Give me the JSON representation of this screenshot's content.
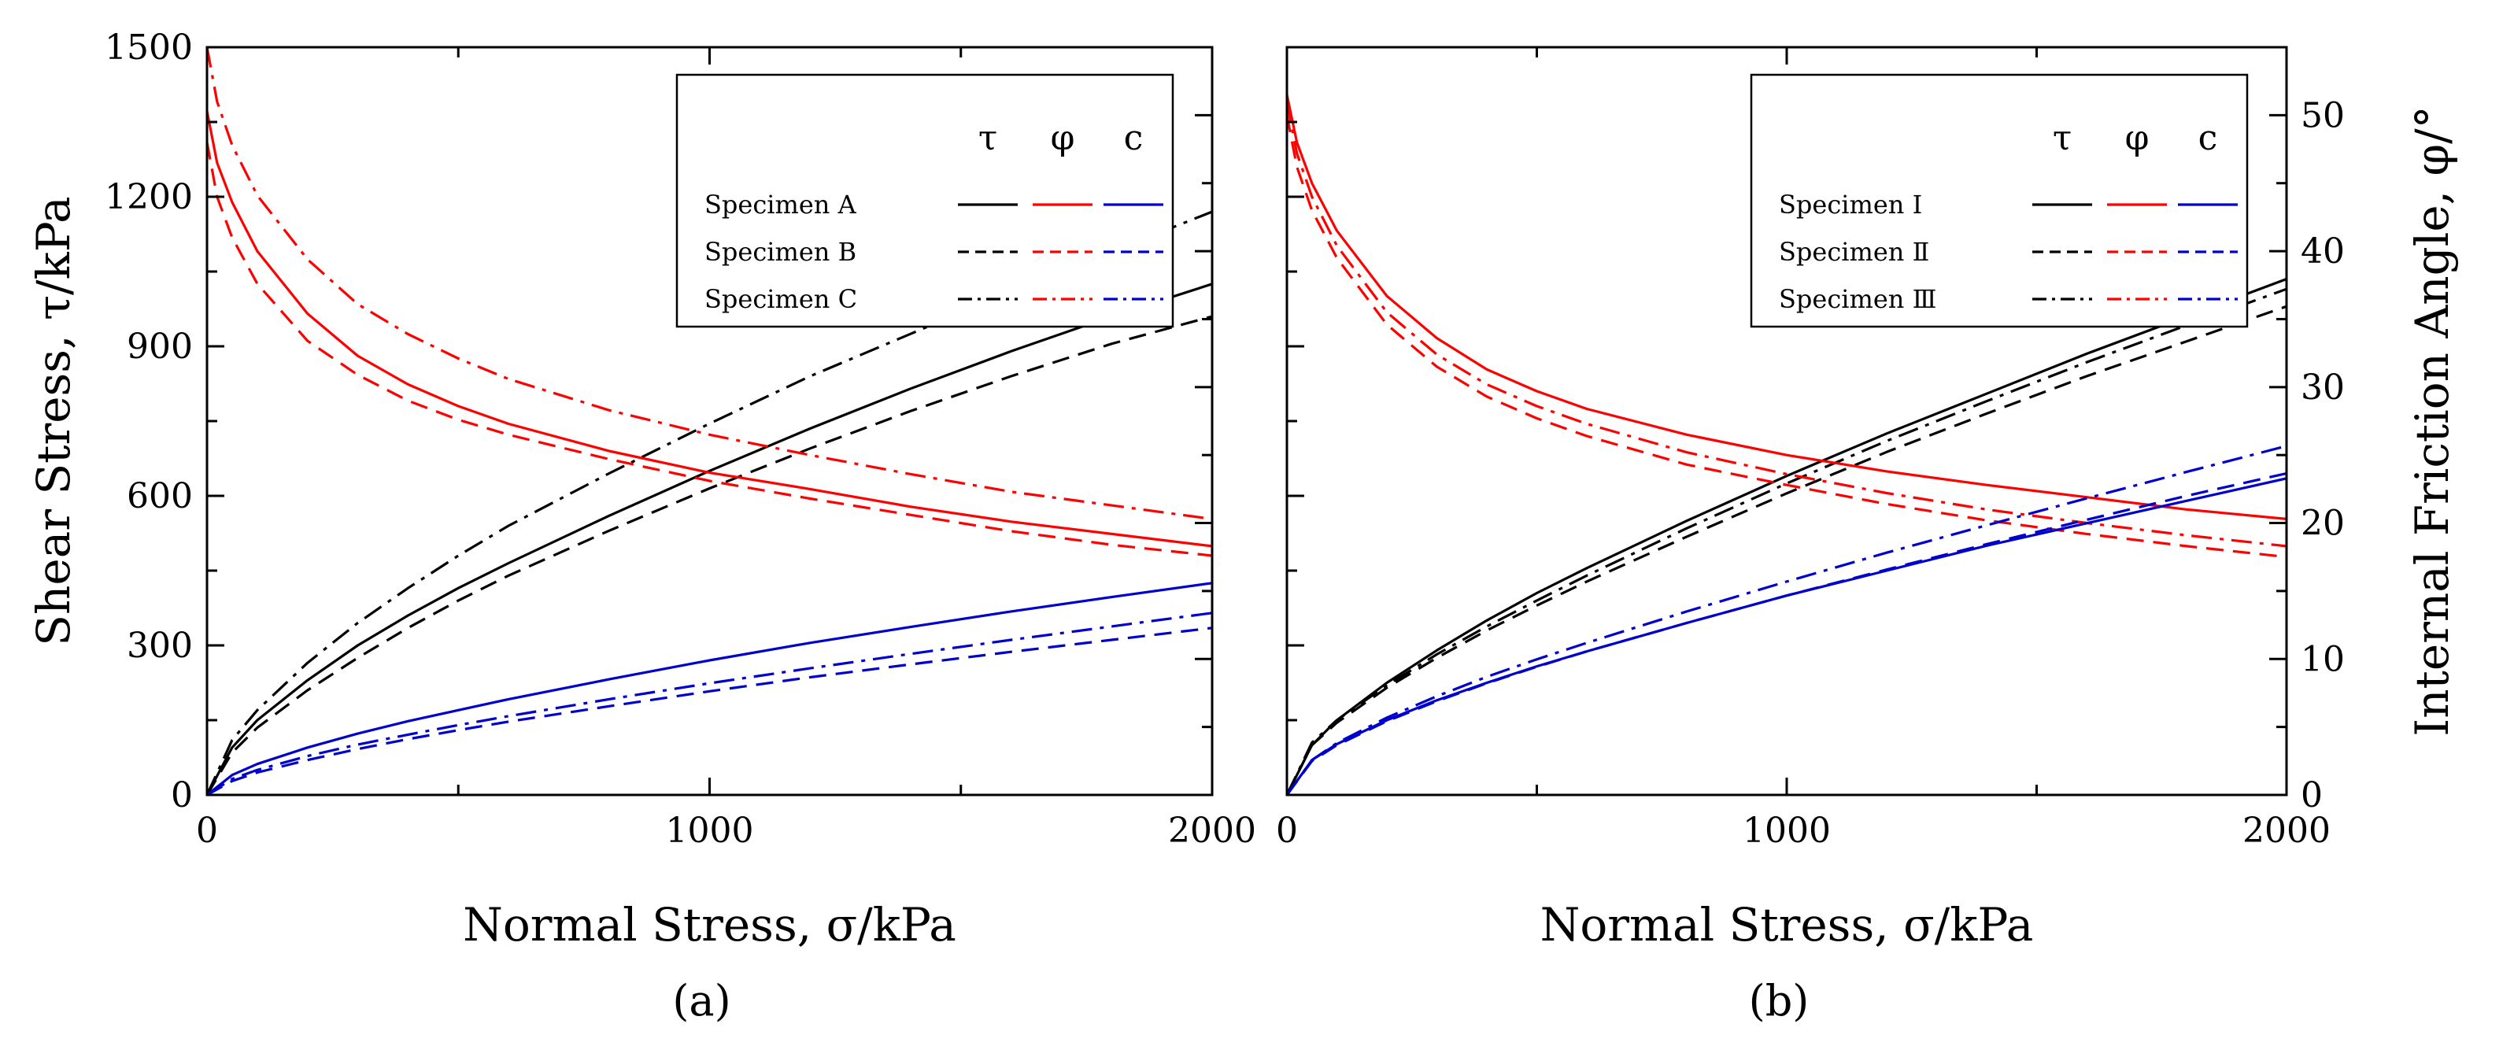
{
  "chart_data": [
    {
      "type": "line",
      "panel_label": "(a)",
      "xlabel": "Normal Stress, σ/kPa",
      "ylabel": "Shear Stress, τ/kPa",
      "xlim": [
        0,
        2000
      ],
      "ylim_left": [
        0,
        1500
      ],
      "ylim_right": [
        0,
        55
      ],
      "x_ticks": [
        "0",
        "1000",
        "2000"
      ],
      "y_ticks": [
        "0",
        "300",
        "600",
        "900",
        "1200",
        "1500"
      ],
      "right_ticks_labeled": false,
      "grid": false,
      "legend": {
        "placement": "top-right",
        "headers": [
          "τ",
          "φ",
          "c"
        ],
        "entries": [
          "Specimen A",
          "Specimen B",
          "Specimen C"
        ]
      },
      "series": [
        {
          "name": "Specimen A",
          "quantity": "τ",
          "axis": "left",
          "color": "#000000",
          "style": "solid",
          "x": [
            0,
            50,
            100,
            200,
            300,
            400,
            500,
            600,
            800,
            1000,
            1200,
            1400,
            1600,
            1800,
            2000
          ],
          "y": [
            0,
            95,
            150,
            230,
            300,
            360,
            415,
            465,
            560,
            650,
            735,
            815,
            890,
            960,
            1025
          ]
        },
        {
          "name": "Specimen B",
          "quantity": "τ",
          "axis": "left",
          "color": "#000000",
          "style": "dashed",
          "x": [
            0,
            50,
            100,
            200,
            300,
            400,
            500,
            600,
            800,
            1000,
            1200,
            1400,
            1600,
            1800,
            2000
          ],
          "y": [
            0,
            85,
            135,
            210,
            275,
            335,
            390,
            440,
            530,
            615,
            695,
            770,
            840,
            905,
            960
          ]
        },
        {
          "name": "Specimen C",
          "quantity": "τ",
          "axis": "left",
          "color": "#000000",
          "style": "dashdot",
          "x": [
            0,
            50,
            100,
            200,
            300,
            400,
            500,
            600,
            800,
            1000,
            1200,
            1400,
            1600,
            1800,
            2000
          ],
          "y": [
            0,
            110,
            170,
            265,
            345,
            415,
            480,
            540,
            645,
            745,
            840,
            925,
            1010,
            1090,
            1170
          ]
        },
        {
          "name": "Specimen A",
          "quantity": "φ",
          "axis": "right",
          "color": "#ff0000",
          "style": "solid",
          "x": [
            0,
            20,
            50,
            100,
            200,
            300,
            400,
            500,
            600,
            800,
            1000,
            1200,
            1400,
            1600,
            1800,
            2000
          ],
          "y": [
            50.3,
            46.5,
            43.6,
            40.0,
            35.4,
            32.3,
            30.2,
            28.6,
            27.3,
            25.3,
            23.7,
            22.5,
            21.2,
            20.1,
            19.2,
            18.3
          ]
        },
        {
          "name": "Specimen B",
          "quantity": "φ",
          "axis": "right",
          "color": "#ff0000",
          "style": "dashed",
          "x": [
            0,
            20,
            50,
            100,
            200,
            300,
            400,
            500,
            600,
            800,
            1000,
            1200,
            1400,
            1600,
            1800,
            2000
          ],
          "y": [
            48.0,
            44.0,
            41.0,
            37.6,
            33.4,
            30.9,
            29.0,
            27.6,
            26.5,
            24.7,
            23.1,
            21.8,
            20.6,
            19.4,
            18.4,
            17.6
          ]
        },
        {
          "name": "Specimen C",
          "quantity": "φ",
          "axis": "right",
          "color": "#ff0000",
          "style": "dashdot",
          "x": [
            0,
            20,
            50,
            100,
            200,
            300,
            400,
            500,
            600,
            800,
            1000,
            1200,
            1400,
            1600,
            1800,
            2000
          ],
          "y": [
            55.0,
            51.0,
            47.8,
            44.1,
            39.4,
            36.1,
            33.9,
            32.1,
            30.6,
            28.3,
            26.5,
            25.0,
            23.6,
            22.3,
            21.3,
            20.3
          ]
        },
        {
          "name": "Specimen A",
          "quantity": "c",
          "axis": "left",
          "color": "#0000cc",
          "style": "solid",
          "x": [
            0,
            50,
            100,
            200,
            300,
            400,
            500,
            600,
            800,
            1000,
            1200,
            1400,
            1600,
            1800,
            2000
          ],
          "y": [
            0,
            40,
            62,
            95,
            123,
            148,
            170,
            192,
            232,
            270,
            305,
            337,
            368,
            397,
            425
          ]
        },
        {
          "name": "Specimen B",
          "quantity": "c",
          "axis": "left",
          "color": "#0000cc",
          "style": "dashed",
          "x": [
            0,
            50,
            100,
            200,
            300,
            400,
            500,
            600,
            800,
            1000,
            1200,
            1400,
            1600,
            1800,
            2000
          ],
          "y": [
            0,
            28,
            45,
            70,
            92,
            112,
            130,
            147,
            178,
            208,
            236,
            262,
            287,
            311,
            335
          ]
        },
        {
          "name": "Specimen C",
          "quantity": "c",
          "axis": "left",
          "color": "#0000cc",
          "style": "dashdot",
          "x": [
            0,
            50,
            100,
            200,
            300,
            400,
            500,
            600,
            800,
            1000,
            1200,
            1400,
            1600,
            1800,
            2000
          ],
          "y": [
            0,
            32,
            50,
            78,
            101,
            121,
            140,
            158,
            192,
            224,
            254,
            283,
            311,
            338,
            365
          ]
        }
      ]
    },
    {
      "type": "line",
      "panel_label": "(b)",
      "xlabel": "Normal Stress, σ/kPa",
      "ylabel_right": "Internal Friction Angle, φ/°",
      "xlim": [
        0,
        2000
      ],
      "ylim_left": [
        0,
        1500
      ],
      "ylim_right": [
        0,
        55
      ],
      "x_ticks": [
        "0",
        "1000",
        "2000"
      ],
      "y_ticks_right": [
        "0",
        "10",
        "20",
        "30",
        "40",
        "50"
      ],
      "left_ticks_labeled": false,
      "grid": false,
      "legend": {
        "placement": "top-right",
        "headers": [
          "τ",
          "φ",
          "c"
        ],
        "entries": [
          "Specimen Ⅰ",
          "Specimen Ⅱ",
          "Specimen Ⅲ"
        ]
      },
      "series": [
        {
          "name": "Specimen Ⅰ",
          "quantity": "τ",
          "axis": "left",
          "color": "#000000",
          "style": "solid",
          "x": [
            0,
            50,
            100,
            200,
            300,
            400,
            500,
            600,
            800,
            1000,
            1200,
            1400,
            1600,
            1800,
            2000
          ],
          "y": [
            0,
            100,
            150,
            225,
            290,
            350,
            405,
            455,
            550,
            640,
            725,
            805,
            885,
            960,
            1035
          ]
        },
        {
          "name": "Specimen Ⅱ",
          "quantity": "τ",
          "axis": "left",
          "color": "#000000",
          "style": "dashed",
          "x": [
            0,
            50,
            100,
            200,
            300,
            400,
            500,
            600,
            800,
            1000,
            1200,
            1400,
            1600,
            1800,
            2000
          ],
          "y": [
            0,
            100,
            145,
            215,
            275,
            330,
            380,
            428,
            518,
            605,
            688,
            765,
            840,
            910,
            980
          ]
        },
        {
          "name": "Specimen Ⅲ",
          "quantity": "τ",
          "axis": "left",
          "color": "#000000",
          "style": "dashdot",
          "x": [
            0,
            50,
            100,
            200,
            300,
            400,
            500,
            600,
            800,
            1000,
            1200,
            1400,
            1600,
            1800,
            2000
          ],
          "y": [
            0,
            105,
            150,
            220,
            282,
            338,
            390,
            440,
            535,
            625,
            710,
            790,
            868,
            942,
            1015
          ]
        },
        {
          "name": "Specimen Ⅰ",
          "quantity": "φ",
          "axis": "right",
          "color": "#ff0000",
          "style": "solid",
          "x": [
            0,
            20,
            50,
            100,
            200,
            300,
            400,
            500,
            600,
            800,
            1000,
            1200,
            1400,
            1600,
            1800,
            2000
          ],
          "y": [
            51.5,
            48.0,
            45.0,
            41.5,
            36.7,
            33.6,
            31.3,
            29.7,
            28.4,
            26.5,
            25.0,
            23.8,
            22.8,
            21.9,
            21.0,
            20.3
          ]
        },
        {
          "name": "Specimen Ⅱ",
          "quantity": "φ",
          "axis": "right",
          "color": "#ff0000",
          "style": "dashed",
          "x": [
            0,
            20,
            50,
            100,
            200,
            300,
            400,
            500,
            600,
            800,
            1000,
            1200,
            1400,
            1600,
            1800,
            2000
          ],
          "y": [
            50.0,
            46.2,
            43.0,
            39.5,
            34.6,
            31.5,
            29.3,
            27.7,
            26.4,
            24.3,
            22.8,
            21.4,
            20.2,
            19.2,
            18.3,
            17.5
          ]
        },
        {
          "name": "Specimen Ⅲ",
          "quantity": "φ",
          "axis": "right",
          "color": "#ff0000",
          "style": "dashdot",
          "x": [
            0,
            20,
            50,
            100,
            200,
            300,
            400,
            500,
            600,
            800,
            1000,
            1200,
            1400,
            1600,
            1800,
            2000
          ],
          "y": [
            51.0,
            47.2,
            44.0,
            40.4,
            35.5,
            32.4,
            30.2,
            28.6,
            27.3,
            25.2,
            23.6,
            22.2,
            21.0,
            20.0,
            19.1,
            18.3
          ]
        },
        {
          "name": "Specimen Ⅰ",
          "quantity": "c",
          "axis": "left",
          "color": "#0000cc",
          "style": "solid",
          "x": [
            0,
            50,
            100,
            200,
            300,
            400,
            500,
            600,
            800,
            1000,
            1200,
            1400,
            1600,
            1800,
            2000
          ],
          "y": [
            0,
            70,
            102,
            150,
            190,
            225,
            258,
            288,
            345,
            400,
            450,
            500,
            545,
            590,
            635
          ]
        },
        {
          "name": "Specimen Ⅱ",
          "quantity": "c",
          "axis": "left",
          "color": "#0000cc",
          "style": "dashed",
          "x": [
            0,
            50,
            100,
            200,
            300,
            400,
            500,
            600,
            800,
            1000,
            1200,
            1400,
            1600,
            1800,
            2000
          ],
          "y": [
            0,
            68,
            100,
            148,
            188,
            224,
            257,
            288,
            345,
            400,
            452,
            503,
            552,
            600,
            645
          ]
        },
        {
          "name": "Specimen Ⅲ",
          "quantity": "c",
          "axis": "left",
          "color": "#0000cc",
          "style": "dashdot",
          "x": [
            0,
            50,
            100,
            200,
            300,
            400,
            500,
            600,
            800,
            1000,
            1200,
            1400,
            1600,
            1800,
            2000
          ],
          "y": [
            0,
            70,
            104,
            155,
            198,
            237,
            272,
            305,
            368,
            428,
            486,
            541,
            595,
            648,
            700
          ]
        }
      ]
    }
  ]
}
